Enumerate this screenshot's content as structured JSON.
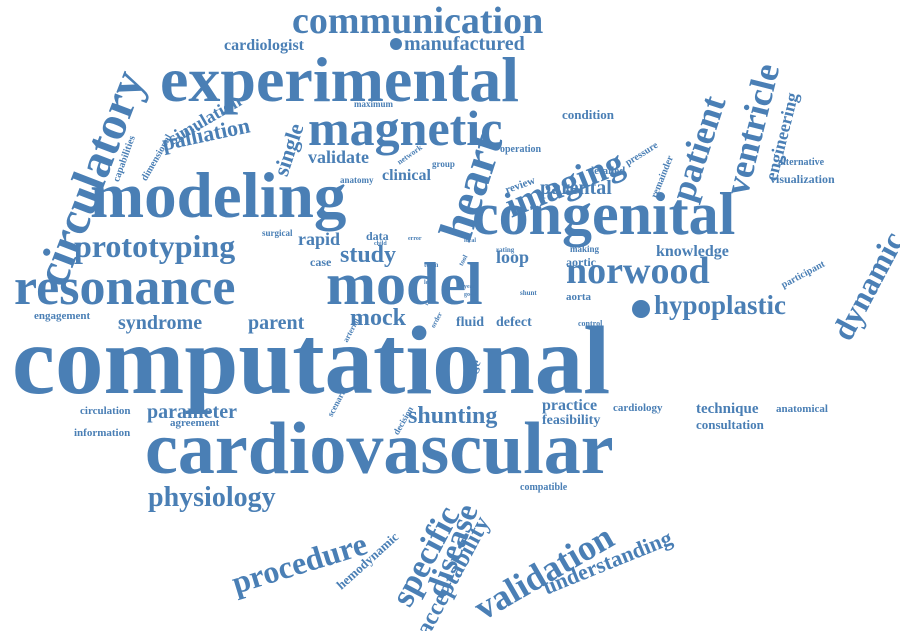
{
  "colors": {
    "word": "#4a7fb5",
    "background": "#ffffff"
  },
  "words": {
    "computational": "computational",
    "cardiovascular": "cardiovascular",
    "experimental": "experimental",
    "congenital": "congenital",
    "modeling": "modeling",
    "resonance": "resonance",
    "model": "model",
    "magnetic": "magnetic",
    "communication": "communication",
    "circulatory": "circulatory",
    "heart": "heart",
    "norwood": "norwood",
    "imaging": "imaging",
    "patient": "patient",
    "ventricle": "ventricle",
    "prototyping": "prototyping",
    "hypoplastic": "hypoplastic",
    "dynamic": "dynamic",
    "validation": "validation",
    "procedure": "procedure",
    "specific": "specific",
    "physiology": "physiology",
    "shunting": "shunting",
    "disease": "disease",
    "acceptability": "acceptability",
    "understanding": "understanding",
    "manufactured": "manufactured",
    "cardiologist": "cardiologist",
    "palliation": "palliation",
    "single": "single",
    "engineering": "engineering",
    "study": "study",
    "mock": "mock",
    "parameter": "parameter",
    "syndrome": "syndrome",
    "parent": "parent",
    "parental": "parental",
    "validate": "validate",
    "clinical": "clinical",
    "simulation": "simulation",
    "knowledge": "knowledge",
    "rapid": "rapid",
    "loop": "loop",
    "fluid": "fluid",
    "defect": "defect",
    "practice": "practice",
    "feasibility": "feasibility",
    "technique": "technique",
    "consultation": "consultation",
    "hemodynamic": "hemodynamic",
    "condition": "condition",
    "detailed": "detailed",
    "visualization": "visualization",
    "alternative": "alternative",
    "engagement": "engagement",
    "information": "information",
    "circulation": "circulation",
    "agreement": "agreement",
    "anatomical": "anatomical",
    "cardiology": "cardiology",
    "aortic": "aortic",
    "aorta": "aorta",
    "data": "data",
    "case": "case",
    "review": "review",
    "stage": "stage",
    "compatible": "compatible",
    "capabilities": "capabilities",
    "dimensional": "dimensional",
    "operation": "operation",
    "maximum": "maximum",
    "network": "network",
    "group": "group",
    "anatomy": "anatomy",
    "pressure": "pressure",
    "remainder": "remainder",
    "surgical": "surgical",
    "participant": "participant",
    "making": "making",
    "scenario": "scenario",
    "decision": "decision",
    "arterial": "arterial",
    "order": "order",
    "control": "control",
    "shunt": "shunt",
    "rating": "rating",
    "tool": "tool",
    "term": "term",
    "child": "child",
    "error": "error",
    "left": "left",
    "local": "local",
    "year": "year",
    "good": "good",
    "result": "result"
  }
}
